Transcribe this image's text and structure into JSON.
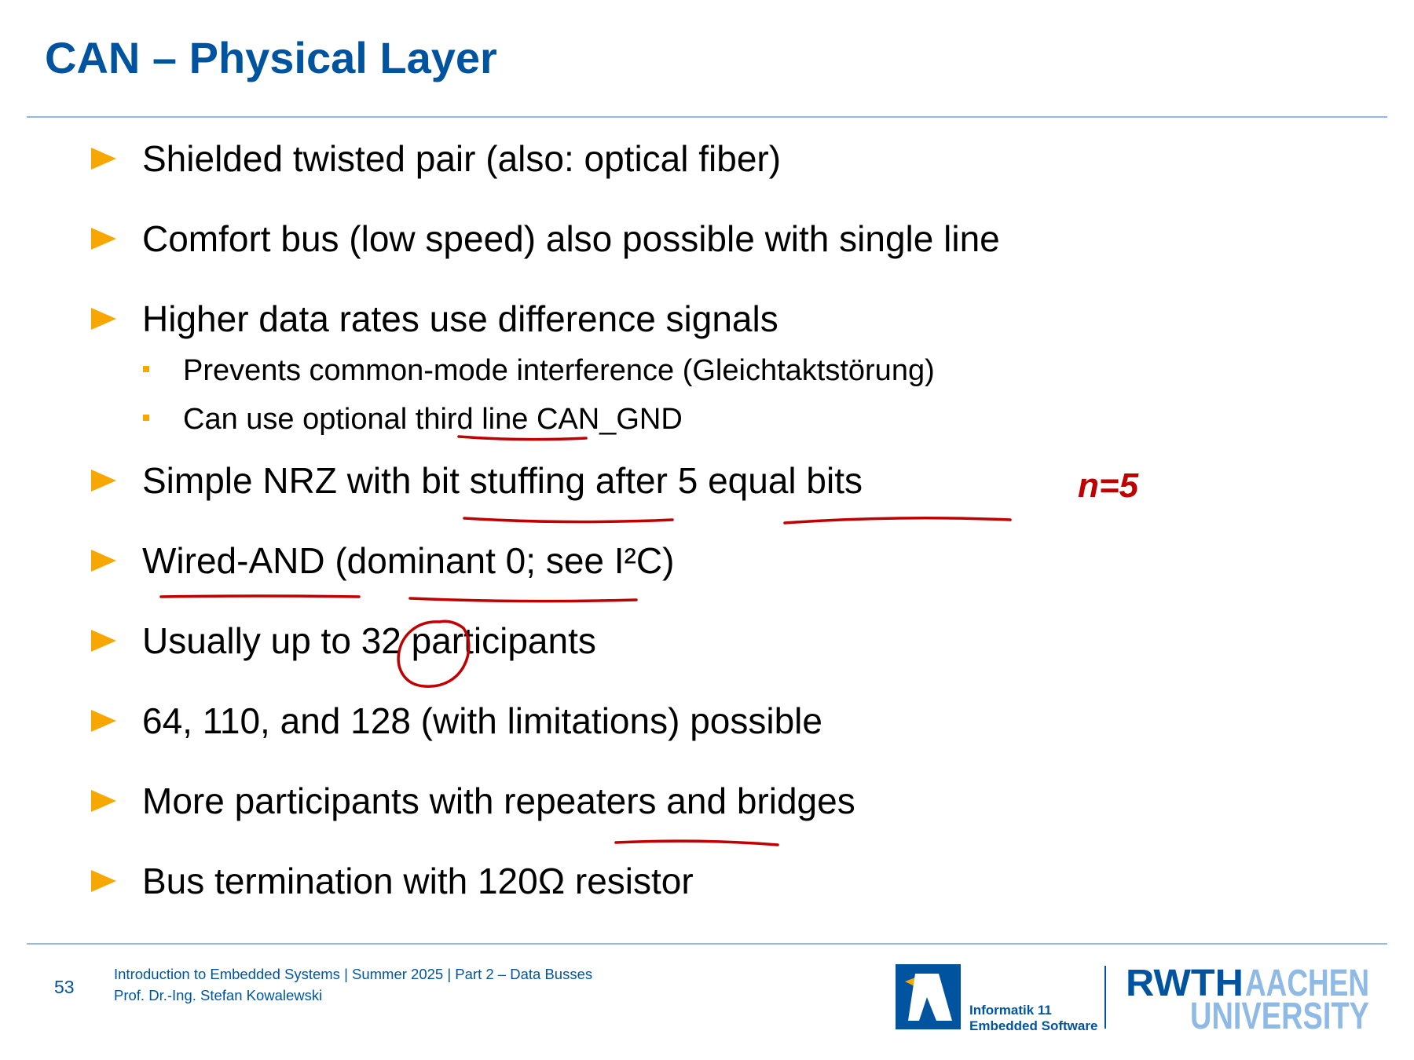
{
  "header": {
    "title": "CAN – Physical Layer"
  },
  "bullets": [
    {
      "text": "Shielded twisted pair (also: optical fiber)"
    },
    {
      "text": "Comfort bus (low speed) also possible with single line"
    },
    {
      "text": "Higher data rates use difference signals",
      "sub": [
        "Prevents common-mode interference (Gleichtaktstörung)",
        "Can use optional third line CAN_GND"
      ]
    },
    {
      "text": "Simple NRZ with bit stuffing after 5 equal bits"
    },
    {
      "text": "Wired-AND (dominant 0; see I²C)"
    },
    {
      "text": "Usually up to 32 participants"
    },
    {
      "text": "64, 110, and 128 (with limitations) possible"
    },
    {
      "text": "More participants with repeaters and bridges"
    },
    {
      "text": "Bus termination with 120Ω resistor"
    }
  ],
  "annotation": "n=5",
  "footer": {
    "page": "53",
    "course": "Introduction to Embedded Systems | Summer 2025 | Part 2 – Data Busses",
    "author": "Prof. Dr.-Ing. Stefan Kowalewski"
  },
  "logo": {
    "institute": "Informatik 11",
    "group": "Embedded Software",
    "rwth": "RWTH",
    "aachen": "AACHEN",
    "university": "UNIVERSITY"
  }
}
